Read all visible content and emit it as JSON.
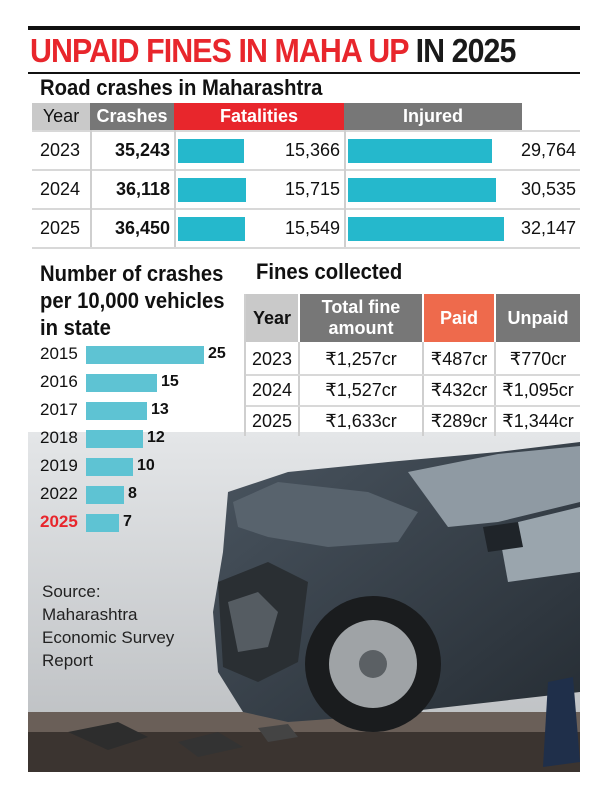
{
  "headline": {
    "part1": "UNPAID FINES IN MAHA UP",
    "part2": "IN 2025"
  },
  "road_crashes": {
    "title": "Road crashes in Maharashtra",
    "headers": [
      "Year",
      "Crashes",
      "Fatalities",
      "Injured"
    ],
    "rows": [
      {
        "year": "2023",
        "crashes": "35,243",
        "fatalities": "15,366",
        "injured": "29,764"
      },
      {
        "year": "2024",
        "crashes": "36,118",
        "fatalities": "15,715",
        "injured": "30,535"
      },
      {
        "year": "2025",
        "crashes": "36,450",
        "fatalities": "15,549",
        "injured": "32,147"
      }
    ]
  },
  "crashes_per_vehicles": {
    "title_line1": "Number of crashes",
    "title_line2": "per 10,000 vehicles",
    "title_line3": "in state"
  },
  "fines": {
    "title": "Fines collected",
    "headers": {
      "year": "Year",
      "total_line1": "Total fine",
      "total_line2": "amount",
      "paid": "Paid",
      "unpaid": "Unpaid"
    },
    "rows": [
      {
        "year": "2023",
        "total": "₹1,257cr",
        "paid": "₹487cr",
        "unpaid": "₹770cr"
      },
      {
        "year": "2024",
        "total": "₹1,527cr",
        "paid": "₹432cr",
        "unpaid": "₹1,095cr"
      },
      {
        "year": "2025",
        "total": "₹1,633cr",
        "paid": "₹289cr",
        "unpaid": "₹1,344cr"
      }
    ]
  },
  "source": {
    "line1": "Source:",
    "line2": "Maharashtra",
    "line3": "Economic Survey",
    "line4": "Report"
  },
  "colors": {
    "accent_red": "#e8262c",
    "header_gray": "#777777",
    "paid_orange": "#ee6a4c",
    "bar_cyan": "#25b8cc",
    "bar_light_cyan": "#5ec3d3",
    "highlight_year": "#e8262c"
  },
  "chart_data": [
    {
      "type": "table",
      "title": "Road crashes in Maharashtra",
      "categories": [
        "2023",
        "2024",
        "2025"
      ],
      "series": [
        {
          "name": "Crashes",
          "values": [
            35243,
            36118,
            36450
          ]
        },
        {
          "name": "Fatalities",
          "values": [
            15366,
            15715,
            15549
          ]
        },
        {
          "name": "Injured",
          "values": [
            29764,
            30535,
            32147
          ]
        }
      ]
    },
    {
      "type": "bar",
      "title": "Number of crashes per 10,000 vehicles in state",
      "categories": [
        "2015",
        "2016",
        "2017",
        "2018",
        "2019",
        "2022",
        "2025"
      ],
      "values": [
        25,
        15,
        13,
        12,
        10,
        8,
        7
      ],
      "highlight": "2025"
    },
    {
      "type": "table",
      "title": "Fines collected",
      "categories": [
        "2023",
        "2024",
        "2025"
      ],
      "series": [
        {
          "name": "Total fine amount",
          "values": [
            1257,
            1527,
            1633
          ],
          "unit": "₹cr"
        },
        {
          "name": "Paid",
          "values": [
            487,
            432,
            289
          ],
          "unit": "₹cr"
        },
        {
          "name": "Unpaid",
          "values": [
            770,
            1095,
            1344
          ],
          "unit": "₹cr"
        }
      ]
    }
  ]
}
